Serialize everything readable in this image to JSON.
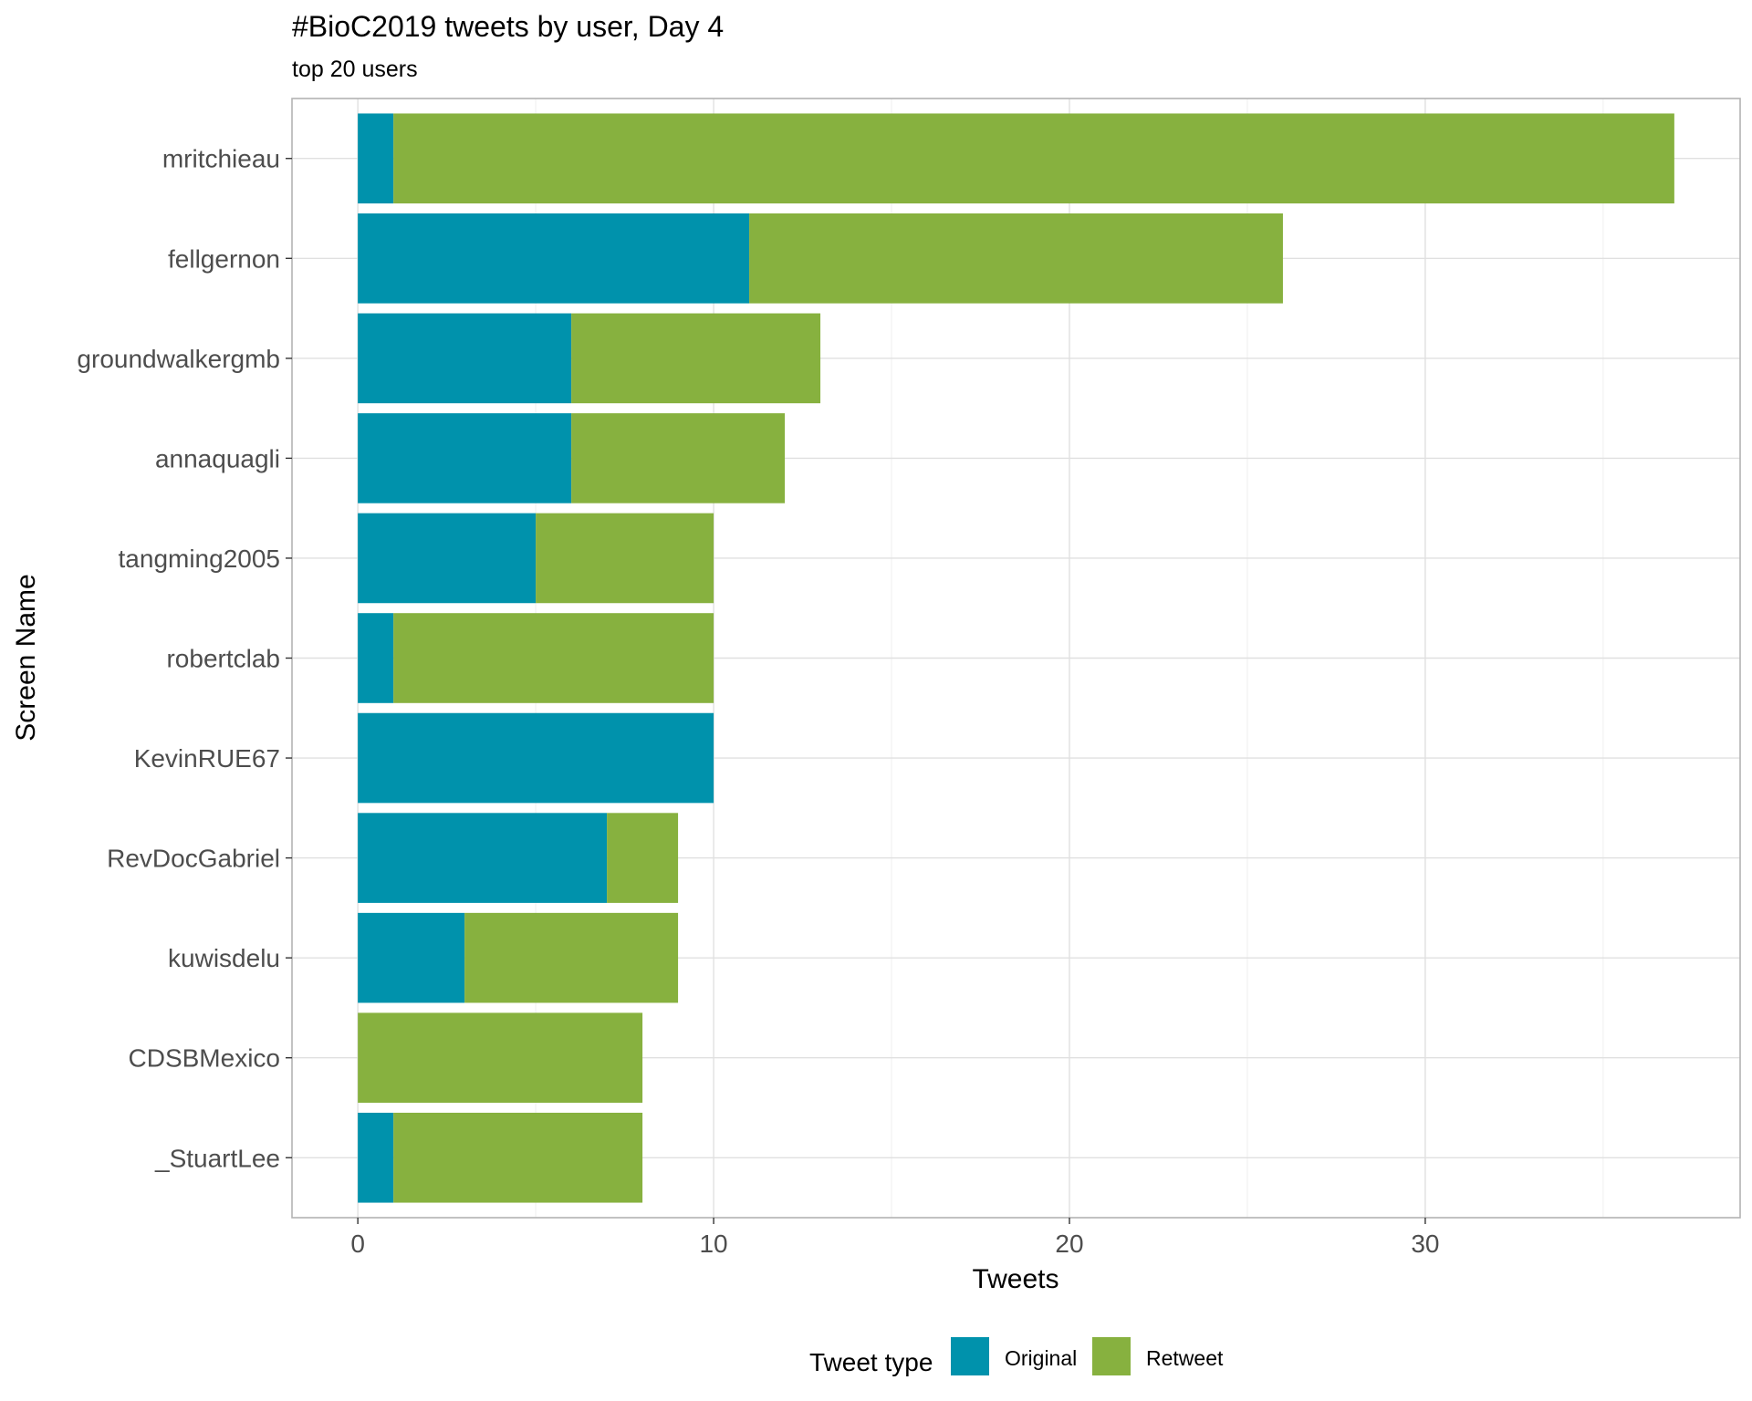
{
  "chart_data": {
    "type": "bar",
    "orientation": "horizontal",
    "stacked": true,
    "title": "#BioC2019 tweets by user, Day 4",
    "subtitle": "top 20 users",
    "xlabel": "Tweets",
    "ylabel": "Screen Name",
    "xlim": [
      -1.85,
      38.85
    ],
    "xticks": [
      0,
      10,
      20,
      30
    ],
    "grid": true,
    "legend": {
      "title": "Tweet type",
      "placement": "bottom"
    },
    "categories": [
      "mritchieau",
      "fellgernon",
      "groundwalkergmb",
      "annaquagli",
      "tangming2005",
      "robertclab",
      "KevinRUE67",
      "RevDocGabriel",
      "kuwisdelu",
      "CDSBMexico",
      "_StuartLee"
    ],
    "series": [
      {
        "name": "Original",
        "color": "#0092AC",
        "values": [
          1,
          11,
          6,
          6,
          5,
          1,
          10,
          7,
          3,
          0,
          1
        ]
      },
      {
        "name": "Retweet",
        "color": "#87B13F",
        "values": [
          36,
          15,
          7,
          6,
          5,
          9,
          0,
          2,
          6,
          8,
          7
        ]
      }
    ]
  }
}
